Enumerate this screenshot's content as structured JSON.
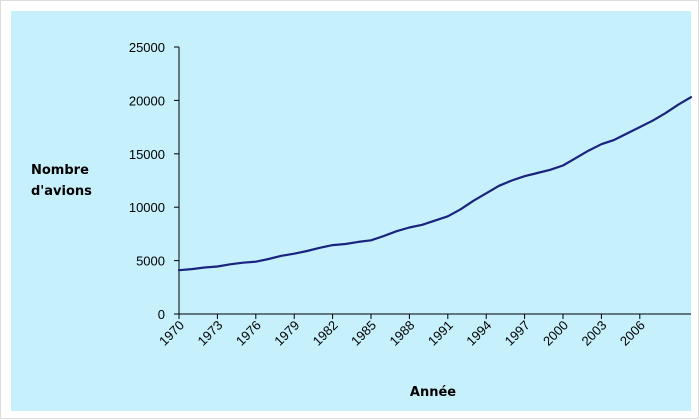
{
  "chart_data": {
    "type": "line",
    "title": "",
    "xlabel": "Année",
    "ylabel_lines": [
      "Nombre",
      "d'avions"
    ],
    "ylim": [
      0,
      25000
    ],
    "yticks": [
      0,
      5000,
      10000,
      15000,
      20000,
      25000
    ],
    "ytick_labels": [
      "0",
      "5000",
      "10000",
      "15000",
      "20000",
      "25000"
    ],
    "xlim": [
      1970,
      2010
    ],
    "xticks": [
      1970,
      1973,
      1976,
      1979,
      1982,
      1985,
      1988,
      1991,
      1994,
      1997,
      2000,
      2003,
      2006
    ],
    "xtick_labels": [
      "1970",
      "1973",
      "1976",
      "1979",
      "1982",
      "1985",
      "1988",
      "1991",
      "1994",
      "1997",
      "2000",
      "2003",
      "2006"
    ],
    "grid": false,
    "colors": {
      "background": "#c6f0fb",
      "line": "#1a237e",
      "axis": "#000000"
    },
    "series": [
      {
        "x": [
          1970,
          1971,
          1972,
          1973,
          1974,
          1975,
          1976,
          1977,
          1978,
          1979,
          1980,
          1981,
          1982,
          1983,
          1984,
          1985,
          1986,
          1987,
          1988,
          1989,
          1990,
          1991,
          1992,
          1993,
          1994,
          1995,
          1996,
          1997,
          1998,
          1999,
          2000,
          2001,
          2002,
          2003,
          2004,
          2005,
          2006,
          2007,
          2008,
          2009,
          2010
        ],
        "values": [
          4100,
          4200,
          4350,
          4450,
          4650,
          4800,
          4900,
          5150,
          5450,
          5650,
          5900,
          6200,
          6450,
          6550,
          6750,
          6900,
          7300,
          7750,
          8100,
          8350,
          8750,
          9150,
          9800,
          10600,
          11300,
          12000,
          12500,
          12900,
          13200,
          13500,
          13900,
          14600,
          15300,
          15900,
          16300,
          16900,
          17500,
          18100,
          18800,
          19600,
          20300
        ]
      }
    ]
  }
}
